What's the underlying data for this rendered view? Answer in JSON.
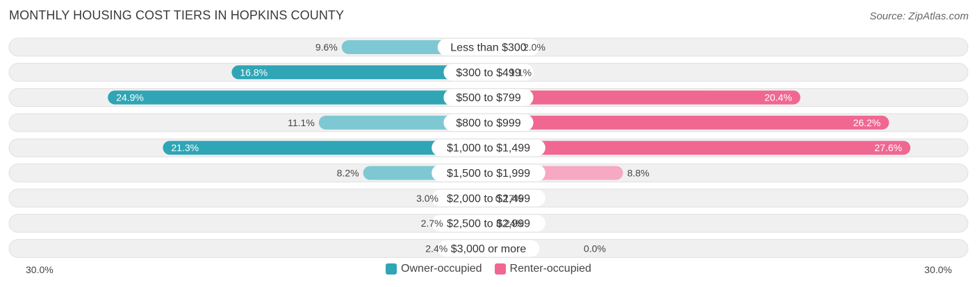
{
  "chart_data": {
    "type": "bar",
    "orientation": "horizontal-diverging",
    "title": "MONTHLY HOUSING COST TIERS IN HOPKINS COUNTY",
    "source": "Source: ZipAtlas.com",
    "categories": [
      "Less than $300",
      "$300 to $499",
      "$500 to $799",
      "$800 to $999",
      "$1,000 to $1,499",
      "$1,500 to $1,999",
      "$2,000 to $2,499",
      "$2,500 to $2,999",
      "$3,000 or more"
    ],
    "series": [
      {
        "name": "Owner-occupied",
        "values": [
          9.6,
          16.8,
          24.9,
          11.1,
          21.3,
          8.2,
          3.0,
          2.7,
          2.4
        ],
        "labels": [
          "9.6%",
          "16.8%",
          "24.9%",
          "11.1%",
          "21.3%",
          "8.2%",
          "3.0%",
          "2.7%",
          "2.4%"
        ]
      },
      {
        "name": "Renter-occupied",
        "values": [
          2.0,
          1.1,
          20.4,
          26.2,
          27.6,
          8.8,
          0.17,
          0.24,
          0.0
        ],
        "labels": [
          "2.0%",
          "1.1%",
          "20.4%",
          "26.2%",
          "27.6%",
          "8.8%",
          "0.17%",
          "0.24%",
          "0.0%"
        ]
      }
    ],
    "xlim": [
      0,
      30
    ],
    "axis_min_label": "30.0%",
    "axis_max_label": "30.0%",
    "legend_position": "bottom-center"
  },
  "colors": {
    "owner_strong": "#2fa5b5",
    "owner_light": "#7ec8d3",
    "renter_strong": "#f06792",
    "renter_light": "#f7a8c2",
    "row_bg": "#f0f0f0",
    "row_border": "#e0e0e0"
  }
}
